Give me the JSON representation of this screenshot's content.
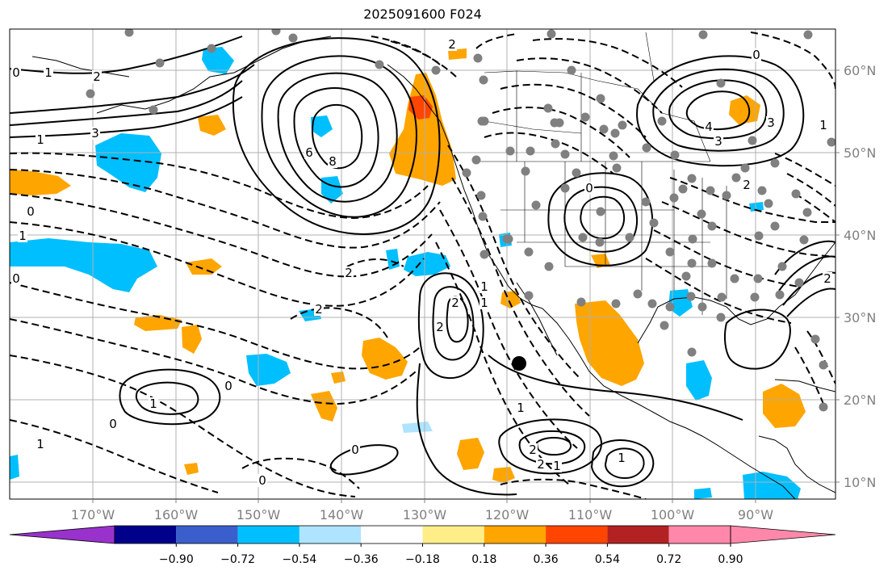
{
  "title": "2025091600 F024",
  "colors": {
    "background": "#ffffff",
    "gridline": "#b0b0b0",
    "label_gray": "#808080",
    "fill_orange": "#ffa500",
    "fill_dark_orange": "#ff4500",
    "fill_red": "#d62020",
    "fill_sky": "#00bfff",
    "fill_light_sky": "#aee4ff",
    "station_gray": "#808080"
  },
  "map": {
    "lon_labels": [
      "170°W",
      "160°W",
      "150°W",
      "140°W",
      "130°W",
      "120°W",
      "110°W",
      "100°W",
      "90°W"
    ],
    "lat_labels": [
      "60°N",
      "50°N",
      "40°N",
      "30°N",
      "20°N",
      "10°N"
    ],
    "contour_labels": [
      "6",
      "8",
      "2",
      "2",
      "1",
      "0",
      "1",
      "2",
      "3",
      "4",
      "2",
      "3",
      "0",
      "1",
      "2",
      "3",
      "1",
      "0",
      "1",
      "0",
      "0",
      "1",
      "0",
      "2",
      "2",
      "1",
      "0",
      "1",
      "0",
      "1",
      "0",
      "2",
      "2",
      "2",
      "1",
      "1"
    ]
  },
  "colorbar": {
    "colors": [
      "#9932cc",
      "#00008b",
      "#3a5fcd",
      "#00bfff",
      "#aee4ff",
      "#ffffff",
      "#ffee88",
      "#ffa500",
      "#ff4500",
      "#b22222",
      "#ff88aa",
      "#ff88aa"
    ],
    "tick_labels": [
      "−0.90",
      "−0.72",
      "−0.54",
      "−0.36",
      "−0.18",
      "0.18",
      "0.36",
      "0.54",
      "0.72",
      "0.90"
    ]
  },
  "large_marker": "black-dot"
}
